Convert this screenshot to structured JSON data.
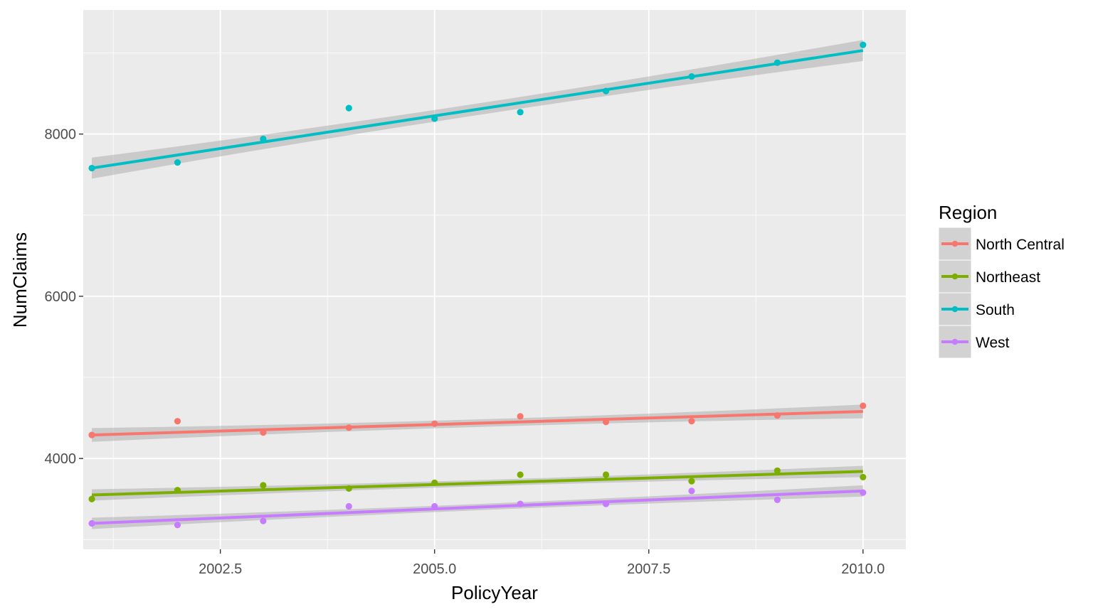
{
  "chart_data": {
    "type": "scatter",
    "title": "",
    "xlabel": "PolicyYear",
    "ylabel": "NumClaims",
    "xlim": [
      2000.9,
      2010.5
    ],
    "ylim": [
      2880,
      9530
    ],
    "x_ticks": [
      {
        "value": 2002.5,
        "label": "2002.5"
      },
      {
        "value": 2005.0,
        "label": "2005.0"
      },
      {
        "value": 2007.5,
        "label": "2007.5"
      },
      {
        "value": 2010.0,
        "label": "2010.0"
      }
    ],
    "x_minor": [
      2001.25,
      2003.75,
      2006.25,
      2008.75
    ],
    "y_ticks": [
      {
        "value": 4000,
        "label": "4000"
      },
      {
        "value": 6000,
        "label": "6000"
      },
      {
        "value": 8000,
        "label": "8000"
      }
    ],
    "y_minor": [
      3000,
      5000,
      7000,
      9000
    ],
    "grid": true,
    "smooth": "linear fit with confidence band",
    "legend": {
      "title": "Region",
      "position": "right"
    },
    "x": [
      2001,
      2002,
      2003,
      2004,
      2005,
      2006,
      2007,
      2008,
      2009,
      2010
    ],
    "series": [
      {
        "name": "North Central",
        "color": "#F8766D",
        "values": [
          4290,
          4460,
          4320,
          4380,
          4430,
          4520,
          4450,
          4460,
          4530,
          4650
        ],
        "fit": [
          4290,
          4580
        ],
        "band": 85
      },
      {
        "name": "Northeast",
        "color": "#7CAE00",
        "values": [
          3500,
          3610,
          3670,
          3630,
          3700,
          3800,
          3800,
          3720,
          3850,
          3770
        ],
        "fit": [
          3550,
          3840
        ],
        "band": 70
      },
      {
        "name": "South",
        "color": "#00BFC4",
        "values": [
          7580,
          7650,
          7940,
          8320,
          8190,
          8270,
          8530,
          8710,
          8880,
          9100
        ],
        "fit": [
          7580,
          9030
        ],
        "band": 130
      },
      {
        "name": "West",
        "color": "#C77CFF",
        "values": [
          3200,
          3180,
          3230,
          3410,
          3410,
          3440,
          3440,
          3600,
          3490,
          3580
        ],
        "fit": [
          3200,
          3600
        ],
        "band": 70
      }
    ]
  }
}
